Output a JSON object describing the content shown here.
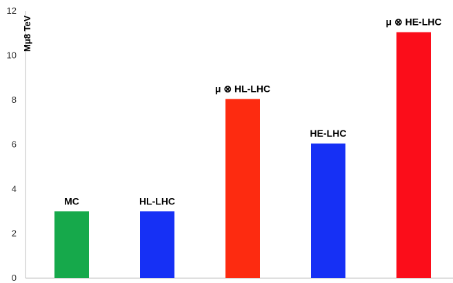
{
  "chart_data": {
    "type": "bar",
    "title": "",
    "xlabel": "",
    "ylabel": "Mμ8 TeV",
    "ylim": [
      0,
      12
    ],
    "yticks": [
      0,
      2,
      4,
      6,
      8,
      10,
      12
    ],
    "grid": false,
    "legend": "none",
    "categories": [
      "MC",
      "HL-LHC",
      "μ ⊗ HL-LHC",
      "HE-LHC",
      "μ ⊗ HE-LHC"
    ],
    "values": [
      3,
      3,
      8.05,
      6.05,
      11.05
    ],
    "colors": [
      "#16a94b",
      "#1630f5",
      "#fd2b10",
      "#1630f5",
      "#fb0d1a"
    ]
  }
}
